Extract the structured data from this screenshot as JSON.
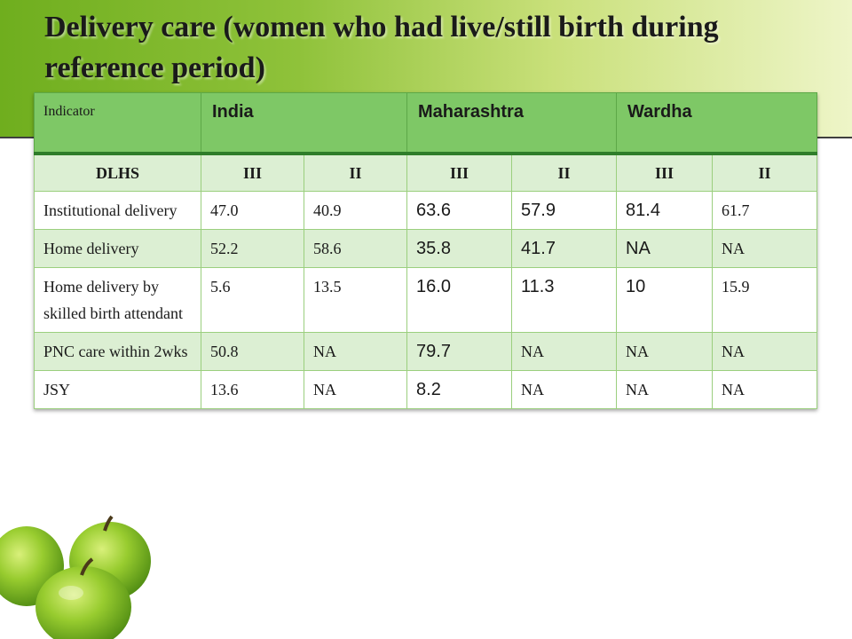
{
  "slide": {
    "title": "Delivery care (women who had live/still birth during reference period)"
  },
  "table": {
    "header": {
      "indicator": "Indicator",
      "regions": [
        "India",
        "Maharashtra",
        "Wardha"
      ]
    },
    "subheader": [
      "DLHS",
      "III",
      "II",
      "III",
      "II",
      "III",
      "II"
    ],
    "rows": [
      {
        "label": "Institutional delivery",
        "values": [
          "47.0",
          "40.9",
          "63.6",
          "57.9",
          "81.4",
          "61.7"
        ]
      },
      {
        "label": "Home delivery",
        "values": [
          "52.2",
          "58.6",
          "35.8",
          "41.7",
          "NA",
          "NA"
        ]
      },
      {
        "label": "Home delivery by skilled birth attendant",
        "values": [
          "5.6",
          "13.5",
          "16.0",
          "11.3",
          "10",
          "15.9"
        ]
      },
      {
        "label": "PNC care within 2wks",
        "values": [
          "50.8",
          "NA",
          "79.7",
          "NA",
          "NA",
          "NA"
        ]
      },
      {
        "label": "JSY",
        "values": [
          "13.6",
          "NA",
          "8.2",
          "NA",
          "NA",
          "NA"
        ]
      }
    ]
  },
  "decoration": {
    "image": "green-apples-icon"
  },
  "colors": {
    "header_fill": "#7ec866",
    "band_fill": "#dcefd3",
    "accent_dark": "#2f7d2a",
    "apple_green": "#8cc63f"
  }
}
